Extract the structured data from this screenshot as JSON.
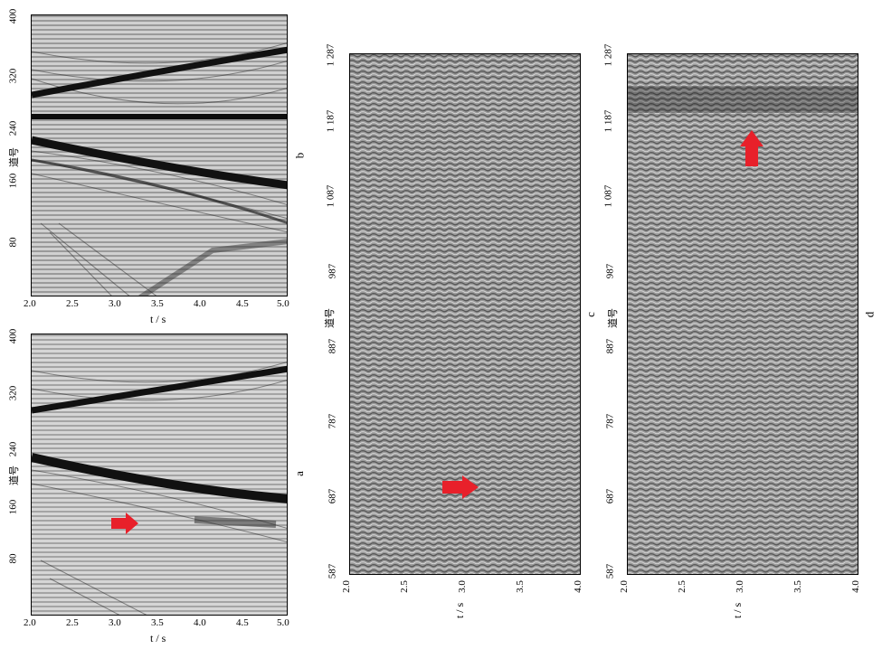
{
  "panels": {
    "a": {
      "letter": "a",
      "x_ticks": [
        "2.0",
        "2.5",
        "3.0",
        "3.5",
        "4.0",
        "4.5",
        "5.0"
      ],
      "y_ticks": [
        "80",
        "160",
        "240",
        "320",
        "400"
      ],
      "xlabel": "t / s",
      "ylabel": "道号"
    },
    "b": {
      "letter": "b",
      "x_ticks": [
        "2.0",
        "2.5",
        "3.0",
        "3.5",
        "4.0",
        "4.5",
        "5.0"
      ],
      "y_ticks": [
        "80",
        "160",
        "240",
        "320",
        "400"
      ],
      "xlabel": "t / s",
      "ylabel": "道号"
    },
    "c": {
      "letter": "c",
      "x_ticks": [
        "2.0",
        "2.5",
        "3.0",
        "3.5",
        "4.0"
      ],
      "y_ticks": [
        "587",
        "687",
        "787",
        "887",
        "987",
        "1 087",
        "1 187",
        "1 287"
      ],
      "xlabel": "t / s",
      "ylabel": "道号"
    },
    "d": {
      "letter": "d",
      "x_ticks": [
        "2.0",
        "2.5",
        "3.0",
        "3.5",
        "4.0"
      ],
      "y_ticks": [
        "587",
        "687",
        "787",
        "887",
        "987",
        "1 087",
        "1 187",
        "1 287"
      ],
      "xlabel": "t / s",
      "ylabel": "道号"
    }
  },
  "colors": {
    "arrow": "#e8202a",
    "event": "#111111",
    "background_gray": "#bdbdbd"
  }
}
